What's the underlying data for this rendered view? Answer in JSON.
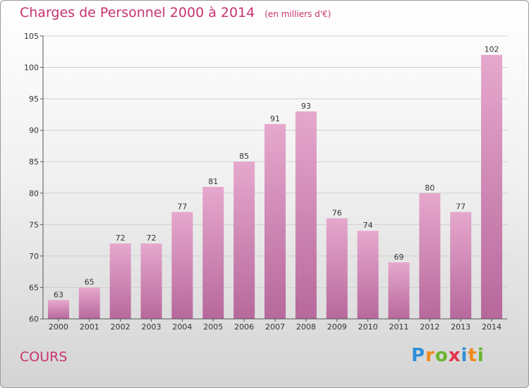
{
  "title": "Charges de Personnel 2000 à 2014",
  "subtitle": "(en milliers d'€)",
  "commune": "COURS",
  "logo": {
    "letters": [
      "P",
      "r",
      "o",
      "x",
      "i",
      "t",
      "i"
    ],
    "colors": [
      "#2f8fd8",
      "#f08a1c",
      "#6ab42d",
      "#e2334b",
      "#2f8fd8",
      "#f08a1c",
      "#6ab42d"
    ]
  },
  "colors": {
    "accent": "#c8336f",
    "bar_top": "#e6a8cd",
    "bar_bottom": "#b7689c"
  },
  "chart_data": {
    "type": "bar",
    "categories": [
      "2000",
      "2001",
      "2002",
      "2003",
      "2004",
      "2005",
      "2006",
      "2007",
      "2008",
      "2009",
      "2010",
      "2011",
      "2012",
      "2013",
      "2014"
    ],
    "values": [
      63,
      65,
      72,
      72,
      77,
      81,
      85,
      91,
      93,
      76,
      74,
      69,
      80,
      77,
      102
    ],
    "ylim": [
      60,
      105
    ],
    "yticks": [
      60,
      65,
      70,
      75,
      80,
      85,
      90,
      95,
      100,
      105
    ],
    "grid": true
  }
}
